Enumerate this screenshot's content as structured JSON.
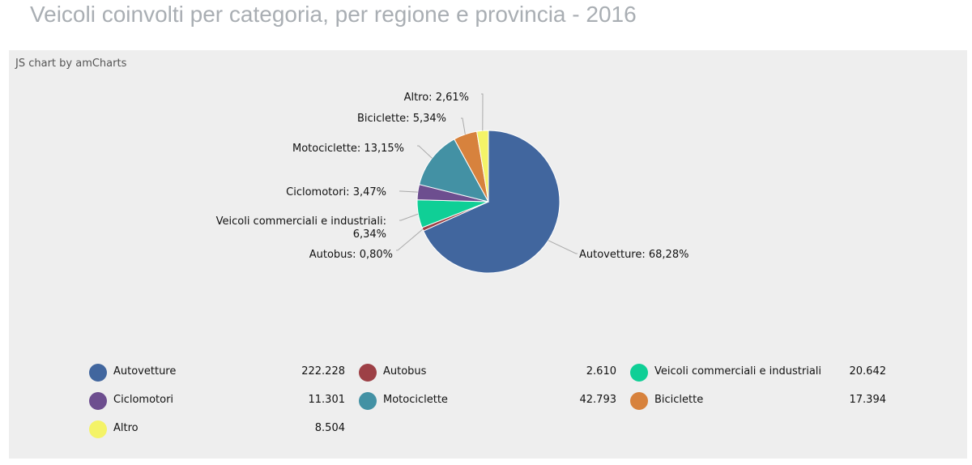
{
  "title": "Veicoli coinvolti per categoria, per regione e provincia - 2016",
  "credit": "JS chart by amCharts",
  "chart_data": {
    "type": "pie",
    "title": "Veicoli coinvolti per categoria, per regione e provincia - 2016",
    "slices": [
      {
        "name": "Autovetture",
        "value": 222228,
        "value_label": "222.228",
        "percent_label": "68,28%",
        "color": "#41669e"
      },
      {
        "name": "Autobus",
        "value": 2610,
        "value_label": "2.610",
        "percent_label": "0,80%",
        "color": "#9d4046"
      },
      {
        "name": "Veicoli commerciali e industriali",
        "value": 20642,
        "value_label": "20.642",
        "percent_label": "6,34%",
        "color": "#0fcf96"
      },
      {
        "name": "Ciclomotori",
        "value": 11301,
        "value_label": "11.301",
        "percent_label": "3,47%",
        "color": "#6d4e8f"
      },
      {
        "name": "Motociclette",
        "value": 42793,
        "value_label": "42.793",
        "percent_label": "13,15%",
        "color": "#4391a4"
      },
      {
        "name": "Biciclette",
        "value": 17394,
        "value_label": "17.394",
        "percent_label": "5,34%",
        "color": "#d7823d"
      },
      {
        "name": "Altro",
        "value": 8504,
        "value_label": "8.504",
        "percent_label": "2,61%",
        "color": "#f4f367"
      }
    ],
    "legend_position": "bottom",
    "start_angle": "top, clockwise"
  }
}
